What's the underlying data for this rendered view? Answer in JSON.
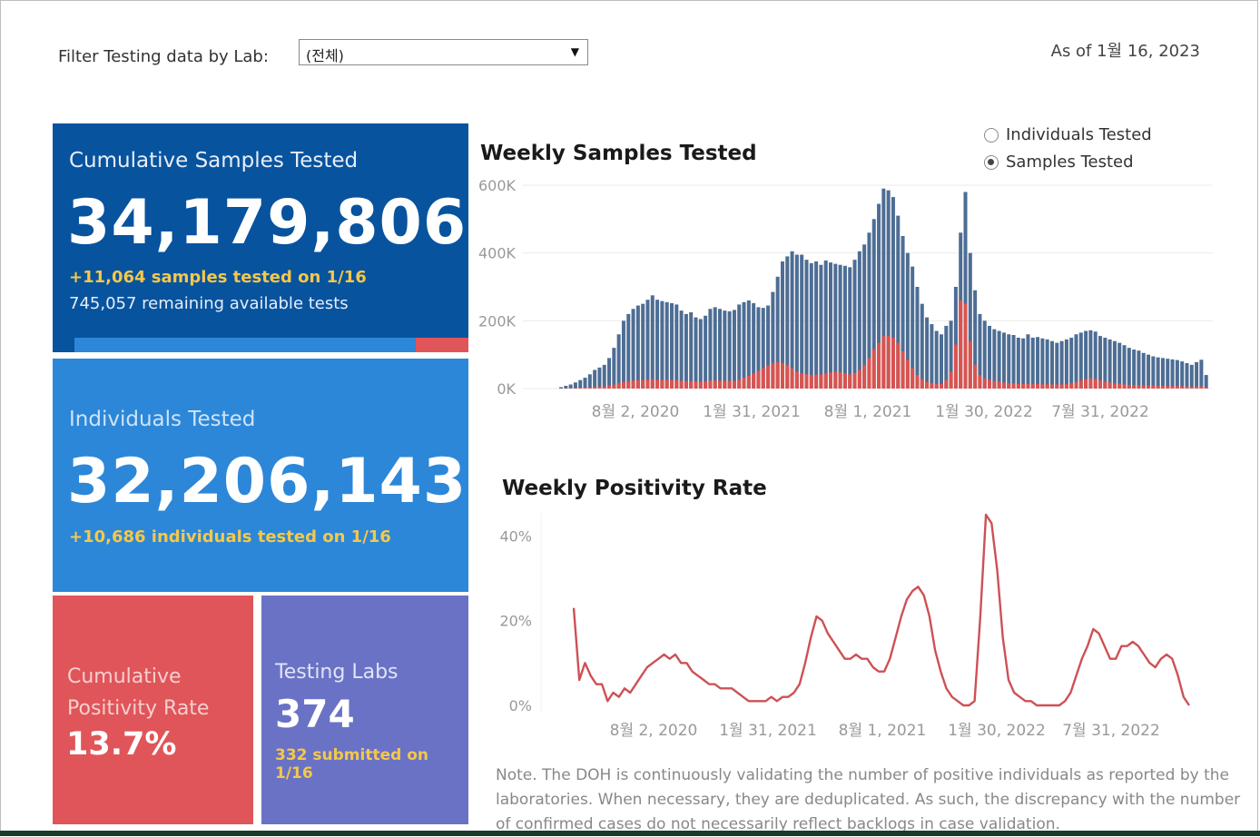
{
  "header": {
    "filter_label": "Filter Testing data by Lab:",
    "lab_select_value": "(전체)",
    "as_of": "As of 1월 16, 2023"
  },
  "kpis": {
    "samples": {
      "title": "Cumulative Samples Tested",
      "value": "34,179,806",
      "delta": "+11,064 samples tested on 1/16",
      "remaining": "745,057 remaining available tests",
      "progress_used_fraction": 0.866
    },
    "individuals": {
      "title": "Individuals Tested",
      "value": "32,206,143",
      "delta": "+10,686  individuals  tested on 1/16"
    },
    "positivity": {
      "title": "Cumulative Positivity Rate",
      "value": "13.7%"
    },
    "labs": {
      "title": "Testing Labs",
      "value": "374",
      "delta": "332 submitted on 1/16"
    }
  },
  "toggle": {
    "options": [
      "Individuals Tested",
      "Samples Tested"
    ],
    "selected": "Samples Tested"
  },
  "colors": {
    "samples_bar": "#4d6d94",
    "positive_bar": "#d9534f",
    "positivity_line": "#cd5155",
    "tile_samples": "#08539e",
    "tile_individuals": "#2c87d8",
    "tile_positivity": "#e05559",
    "tile_labs": "#6a72c6"
  },
  "chart_data": [
    {
      "type": "bar",
      "title": "Weekly Samples Tested",
      "ylim": [
        0,
        600000
      ],
      "yticks": [
        "600K",
        "400K",
        "200K",
        "0K"
      ],
      "xticks": [
        "8월 2, 2020",
        "1월 31, 2021",
        "8월 1, 2021",
        "1월 30, 2022",
        "7월 31, 2022"
      ],
      "grid": true,
      "series": [
        {
          "name": "Samples Tested",
          "values": [
            4000,
            8000,
            12000,
            18000,
            25000,
            32000,
            42000,
            55000,
            62000,
            70000,
            90000,
            120000,
            160000,
            200000,
            220000,
            235000,
            245000,
            250000,
            262000,
            275000,
            262000,
            258000,
            255000,
            252000,
            248000,
            230000,
            220000,
            225000,
            210000,
            205000,
            215000,
            235000,
            240000,
            235000,
            230000,
            228000,
            232000,
            248000,
            255000,
            260000,
            252000,
            240000,
            238000,
            245000,
            285000,
            330000,
            375000,
            390000,
            405000,
            395000,
            395000,
            380000,
            370000,
            375000,
            365000,
            378000,
            372000,
            368000,
            365000,
            362000,
            358000,
            380000,
            405000,
            425000,
            460000,
            500000,
            545000,
            590000,
            585000,
            565000,
            510000,
            450000,
            400000,
            360000,
            300000,
            250000,
            210000,
            190000,
            170000,
            160000,
            185000,
            200000,
            300000,
            460000,
            580000,
            400000,
            290000,
            220000,
            200000,
            185000,
            175000,
            170000,
            165000,
            160000,
            158000,
            150000,
            148000,
            160000,
            150000,
            152000,
            148000,
            145000,
            140000,
            135000,
            140000,
            145000,
            150000,
            160000,
            165000,
            170000,
            172000,
            168000,
            155000,
            150000,
            145000,
            140000,
            135000,
            128000,
            120000,
            115000,
            112000,
            105000,
            100000,
            95000,
            92000,
            90000,
            88000,
            86000,
            84000,
            80000,
            75000,
            70000,
            78000,
            85000,
            40000
          ]
        },
        {
          "name": "Positive",
          "values": [
            400,
            800,
            1200,
            1800,
            2500,
            3200,
            4200,
            5500,
            6200,
            7000,
            9000,
            12000,
            16000,
            20000,
            22000,
            23500,
            24500,
            25000,
            26200,
            27500,
            26200,
            25800,
            25500,
            25200,
            24800,
            23000,
            22000,
            22500,
            21000,
            20500,
            21500,
            23500,
            24000,
            23500,
            23000,
            22800,
            23200,
            26000,
            32000,
            38000,
            45000,
            52000,
            60000,
            68000,
            75000,
            78000,
            76000,
            70000,
            60000,
            50000,
            45000,
            42000,
            40000,
            41000,
            42000,
            45000,
            48000,
            50000,
            48000,
            45000,
            42000,
            46000,
            55000,
            70000,
            90000,
            115000,
            135000,
            155000,
            155000,
            150000,
            135000,
            110000,
            85000,
            60000,
            40000,
            28000,
            20000,
            16000,
            14000,
            14000,
            25000,
            50000,
            130000,
            260000,
            250000,
            140000,
            70000,
            40000,
            30000,
            26000,
            22000,
            20000,
            18000,
            16000,
            15000,
            14000,
            13500,
            14000,
            13000,
            13200,
            13000,
            12800,
            12500,
            12000,
            12500,
            14000,
            16000,
            20000,
            24000,
            28000,
            30000,
            28000,
            24000,
            20000,
            18000,
            16000,
            14000,
            12000,
            11000,
            10500,
            10000,
            9500,
            9000,
            8500,
            8200,
            8000,
            7800,
            7600,
            7400,
            7000,
            6500,
            6000,
            6500,
            7000,
            3000
          ]
        }
      ]
    },
    {
      "type": "line",
      "title": "Weekly Positivity Rate",
      "ylim": [
        0,
        45
      ],
      "yticks": [
        "40%",
        "20%",
        "0%"
      ],
      "xticks": [
        "8월 2, 2020",
        "1월 31, 2021",
        "8월 1, 2021",
        "1월 30, 2022",
        "7월 31, 2022"
      ],
      "grid": false,
      "series": [
        {
          "name": "Positivity Rate",
          "values": [
            23,
            6,
            10,
            7,
            5,
            5,
            1,
            3,
            2,
            4,
            3,
            5,
            7,
            9,
            10,
            11,
            12,
            11,
            12,
            10,
            10,
            8,
            7,
            6,
            5,
            5,
            4,
            4,
            4,
            3,
            2,
            1,
            1,
            1,
            1,
            2,
            1,
            2,
            2,
            3,
            5,
            10,
            16,
            21,
            20,
            17,
            15,
            13,
            11,
            11,
            12,
            11,
            11,
            9,
            8,
            8,
            11,
            16,
            21,
            25,
            27,
            28,
            26,
            21,
            13,
            8,
            4,
            2,
            1,
            0,
            0,
            1,
            21,
            45,
            43,
            32,
            16,
            6,
            3,
            2,
            1,
            1,
            0,
            0,
            0,
            0,
            0,
            1,
            3,
            7,
            11,
            14,
            18,
            17,
            14,
            11,
            11,
            14,
            14,
            15,
            14,
            12,
            10,
            9,
            11,
            12,
            11,
            7,
            2,
            0
          ]
        }
      ]
    }
  ],
  "note": "Note. The DOH is continuously validating the number of positive individuals as reported by the laboratories. When necessary, they are deduplicated. As such, the discrepancy with the number of confirmed cases do not necessarily reflect backlogs in case validation."
}
